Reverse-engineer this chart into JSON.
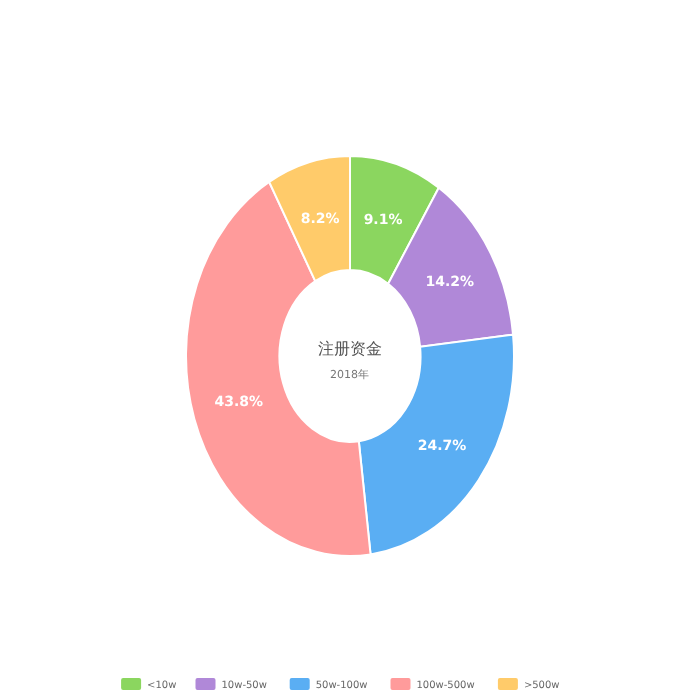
{
  "chart_data": {
    "type": "donut",
    "title": "注册资金",
    "subtitle": "2018年",
    "categories": [
      "<10w",
      "10w-50w",
      "50w-100w",
      "100w-500w",
      ">500w"
    ],
    "values": [
      9.1,
      14.2,
      24.7,
      43.8,
      8.2
    ],
    "colors": [
      "#8bd65f",
      "#b088d8",
      "#5aaef3",
      "#ff9b9b",
      "#ffcb6a"
    ],
    "value_labels": [
      "9.1%",
      "14.2%",
      "24.7%",
      "43.8%",
      "8.2%"
    ],
    "legend": "bottom"
  }
}
